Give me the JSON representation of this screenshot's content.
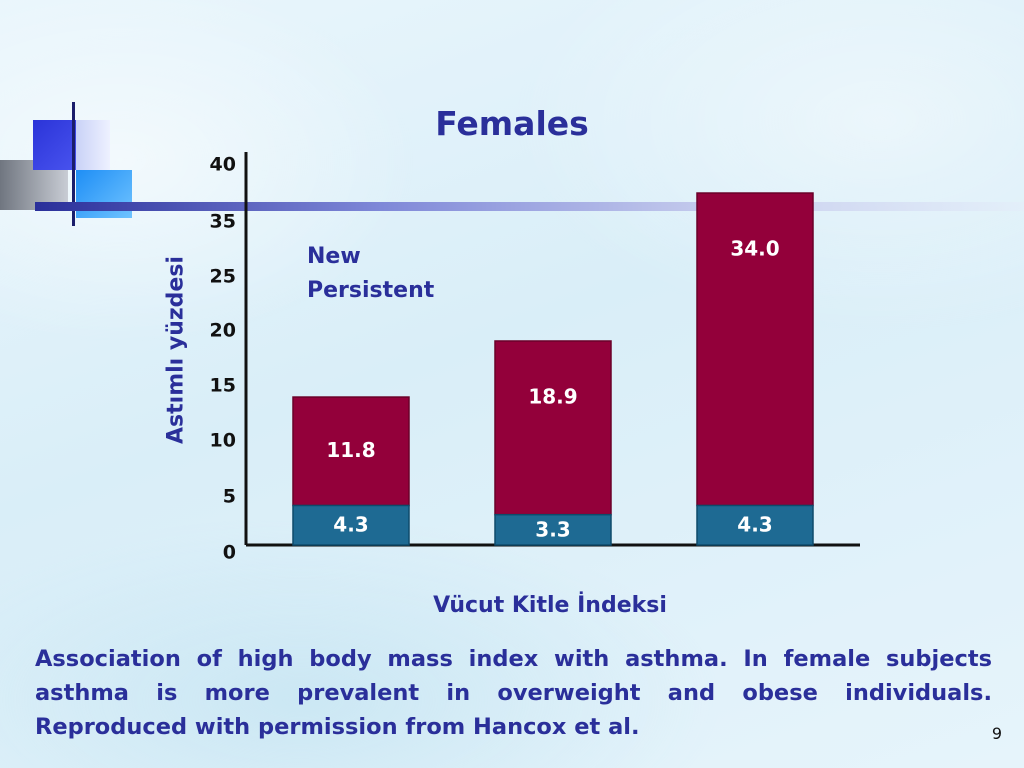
{
  "slide": {
    "caption": "Association of high body mass index with asthma. In female subjects asthma is more prevalent in overweight and obese individuals. Reproduced with permission from Hancox et al.",
    "page_number": "9"
  },
  "colors": {
    "title": "#2a2f9a",
    "new_series": "#1e6a93",
    "persistent_series": "#93003a"
  },
  "chart_data": {
    "type": "bar",
    "stacked": true,
    "title": "Females",
    "xlabel": "Vücut Kitle İndeksi",
    "ylabel": "Astımlı yüzdesi",
    "yticks": [
      "0",
      "5",
      "10",
      "15",
      "20",
      "25",
      "35",
      "40"
    ],
    "categories": [
      "",
      "",
      ""
    ],
    "series": [
      {
        "name": "New",
        "values": [
          4.3,
          3.3,
          4.3
        ],
        "labels": [
          "4.3",
          "3.3",
          "4.3"
        ]
      },
      {
        "name": "Persistent",
        "values": [
          11.8,
          18.9,
          34.0
        ],
        "labels": [
          "11.8",
          "18.9",
          "34.0"
        ]
      }
    ],
    "legend": {
      "placement": "top-left inside",
      "entries": [
        "New",
        "Persistent"
      ]
    },
    "grid": false
  }
}
